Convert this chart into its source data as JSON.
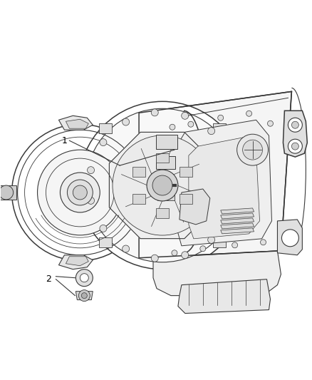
{
  "background_color": "#ffffff",
  "fig_width": 4.38,
  "fig_height": 5.33,
  "dpi": 100,
  "line_color": "#3a3a3a",
  "line_color2": "#555555",
  "text_color": "#000000",
  "font_size_label": 9,
  "callout_1_label": "1",
  "callout_2_label": "2"
}
